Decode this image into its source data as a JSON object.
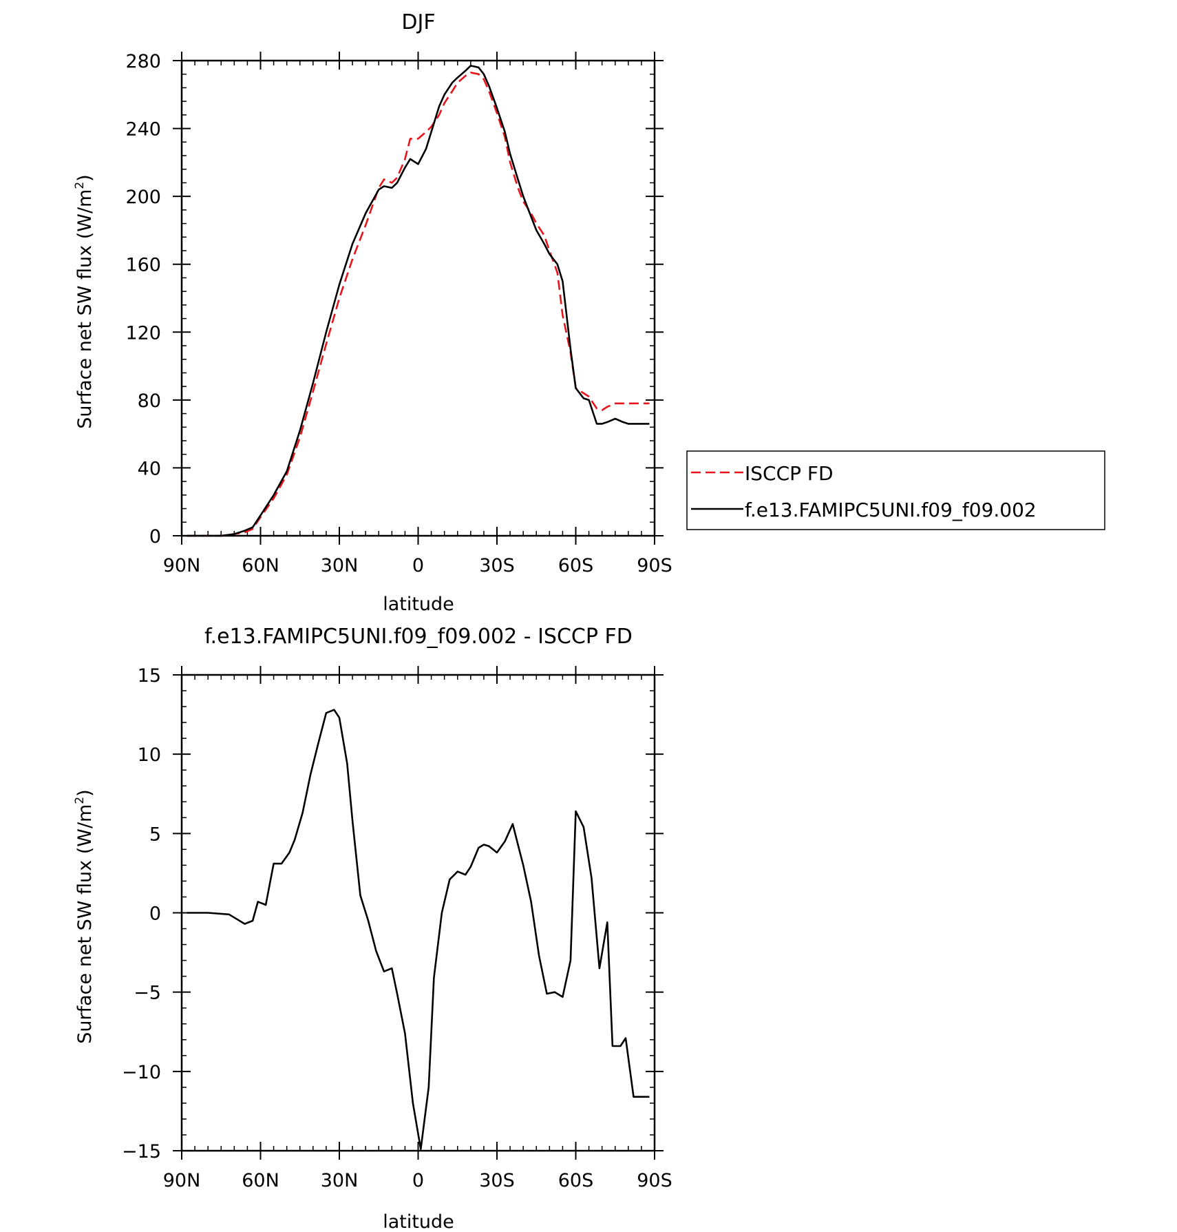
{
  "chart_data": [
    {
      "type": "line",
      "title": "DJF",
      "xlabel": "latitude",
      "ylabel": "Surface net SW flux (W/m",
      "ylabel_sup": "2",
      "ylabel_end": ")",
      "xlim": [
        90,
        -90
      ],
      "ylim": [
        0,
        280
      ],
      "x_ticks": [
        90,
        60,
        30,
        0,
        -30,
        -60,
        -90
      ],
      "x_tick_labels": [
        "90N",
        "60N",
        "30N",
        "0",
        "30S",
        "60S",
        "90S"
      ],
      "y_ticks": [
        0,
        40,
        80,
        120,
        160,
        200,
        240,
        280
      ],
      "y_tick_labels": [
        "0",
        "40",
        "80",
        "120",
        "160",
        "200",
        "240",
        "280"
      ],
      "legend_position": "right",
      "series": [
        {
          "name": "ISCCP FD",
          "color": "#e8141b",
          "dash": "dashed",
          "x": [
            88,
            85,
            80,
            75,
            70,
            66,
            63,
            60,
            55,
            50,
            45,
            40,
            35,
            30,
            25,
            20,
            15,
            13,
            10,
            8,
            5,
            3,
            0,
            -3,
            -5,
            -8,
            -10,
            -13,
            -15,
            -18,
            -20,
            -23,
            -25,
            -27,
            -30,
            -33,
            -35,
            -38,
            -40,
            -43,
            -45,
            -48,
            -50,
            -53,
            -55,
            -58,
            -60,
            -63,
            -65,
            -68,
            -70,
            -72,
            -75,
            -78,
            -80,
            -83,
            -85,
            -88
          ],
          "y": [
            0,
            0,
            0,
            0,
            1,
            2,
            4,
            11,
            22,
            36,
            58,
            85,
            113,
            140,
            163,
            183,
            205,
            210,
            208,
            211,
            222,
            234,
            234,
            238,
            241,
            248,
            255,
            262,
            267,
            271,
            273,
            272,
            269,
            262,
            249,
            235,
            220,
            205,
            197,
            190,
            184,
            177,
            168,
            155,
            130,
            108,
            87,
            84,
            82,
            75,
            74,
            76,
            78,
            78,
            78,
            78,
            78,
            78
          ]
        },
        {
          "name": "f.e13.FAMIPC5UNI.f09_f09.002",
          "color": "#000000",
          "dash": "solid",
          "x": [
            88,
            85,
            80,
            75,
            70,
            66,
            63,
            60,
            55,
            50,
            45,
            40,
            35,
            30,
            25,
            20,
            15,
            13,
            10,
            8,
            5,
            3,
            0,
            -3,
            -5,
            -8,
            -10,
            -13,
            -15,
            -18,
            -20,
            -23,
            -25,
            -27,
            -30,
            -33,
            -35,
            -38,
            -40,
            -43,
            -45,
            -48,
            -50,
            -53,
            -55,
            -58,
            -60,
            -63,
            -65,
            -68,
            -70,
            -72,
            -75,
            -78,
            -80,
            -83,
            -85,
            -88
          ],
          "y": [
            0,
            0,
            0,
            0,
            1,
            3,
            5,
            12,
            24,
            38,
            62,
            90,
            120,
            148,
            172,
            190,
            204,
            206,
            205,
            208,
            217,
            222,
            219,
            228,
            238,
            253,
            260,
            267,
            270,
            274,
            277,
            276,
            272,
            265,
            252,
            238,
            225,
            210,
            200,
            188,
            180,
            172,
            166,
            160,
            150,
            110,
            87,
            81,
            80,
            66,
            66,
            67,
            69,
            67,
            66,
            66,
            66,
            66
          ]
        }
      ]
    },
    {
      "type": "line",
      "title": "f.e13.FAMIPC5UNI.f09_f09.002 - ISCCP FD",
      "xlabel": "latitude",
      "ylabel": "Surface net SW flux (W/m",
      "ylabel_sup": "2",
      "ylabel_end": ")",
      "xlim": [
        90,
        -90
      ],
      "ylim": [
        -15,
        15
      ],
      "x_ticks": [
        90,
        60,
        30,
        0,
        -30,
        -60,
        -90
      ],
      "x_tick_labels": [
        "90N",
        "60N",
        "30N",
        "0",
        "30S",
        "60S",
        "90S"
      ],
      "y_ticks": [
        -15,
        -10,
        -5,
        0,
        5,
        10,
        15
      ],
      "y_tick_labels": [
        "−15",
        "−10",
        "−5",
        "0",
        "5",
        "10",
        "15"
      ],
      "series": [
        {
          "name": "",
          "color": "#000000",
          "dash": "solid",
          "x": [
            88,
            80,
            72,
            69,
            66,
            63,
            61,
            58,
            55,
            52,
            49,
            47,
            44,
            41,
            38,
            35,
            32,
            30,
            27,
            25,
            22,
            19,
            16,
            13,
            10,
            8,
            5,
            2,
            -1,
            -4,
            -6,
            -9,
            -12,
            -15,
            -18,
            -20,
            -23,
            -25,
            -27,
            -30,
            -33,
            -36,
            -38,
            -40,
            -43,
            -46,
            -49,
            -52,
            -55,
            -58,
            -60,
            -63,
            -66,
            -69,
            -72,
            -74,
            -77,
            -79,
            -82,
            -85,
            -88
          ],
          "y": [
            0,
            0,
            -0.1,
            -0.4,
            -0.7,
            -0.5,
            0.7,
            0.5,
            3.1,
            3.1,
            3.8,
            4.6,
            6.3,
            8.7,
            10.7,
            12.6,
            12.8,
            12.3,
            9.4,
            5.8,
            1.1,
            -0.5,
            -2.4,
            -3.7,
            -3.5,
            -5.1,
            -7.6,
            -12.0,
            -14.9,
            -11.0,
            -4.1,
            0.0,
            2.1,
            2.6,
            2.4,
            2.9,
            4.1,
            4.3,
            4.2,
            3.8,
            4.5,
            5.6,
            4.3,
            3.0,
            0.7,
            -2.7,
            -5.1,
            -5.0,
            -5.3,
            -3.0,
            6.4,
            5.4,
            2.2,
            -3.5,
            -0.6,
            -8.4,
            -8.4,
            -7.9,
            -11.6,
            -11.6,
            -11.6
          ]
        }
      ]
    }
  ]
}
